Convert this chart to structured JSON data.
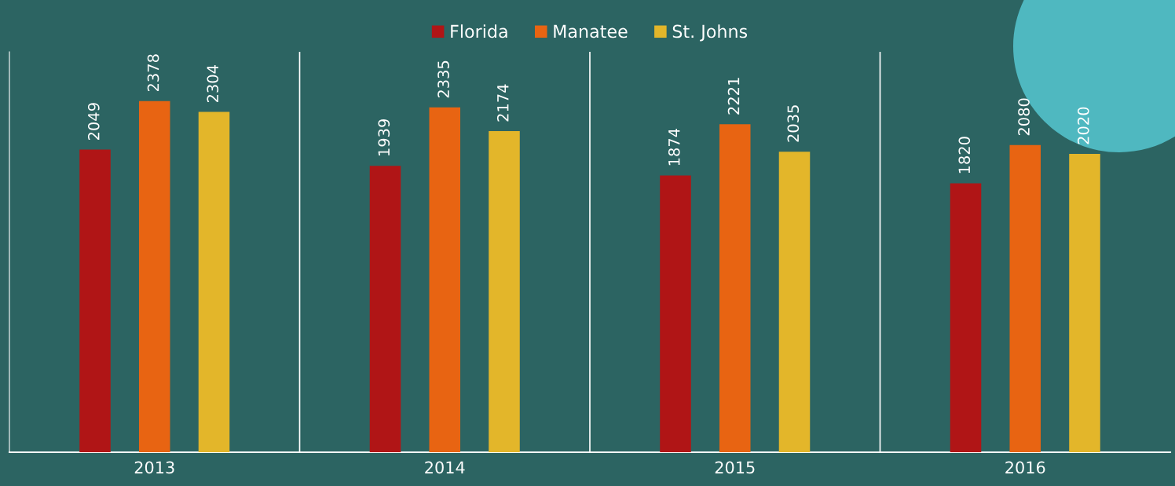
{
  "chart_data": {
    "type": "bar",
    "categories": [
      "2013",
      "2014",
      "2015",
      "2016"
    ],
    "series": [
      {
        "name": "Florida",
        "color": "#b01516",
        "values": [
          2049,
          1939,
          1874,
          1820
        ]
      },
      {
        "name": "Manatee",
        "color": "#e86412",
        "values": [
          2378,
          2335,
          2221,
          2080
        ]
      },
      {
        "name": "St. Johns",
        "color": "#e3b62a",
        "values": [
          2304,
          2174,
          2035,
          2020
        ]
      }
    ],
    "data_labels": true,
    "legend": "top",
    "grid": "x",
    "tick_labels": "x"
  }
}
